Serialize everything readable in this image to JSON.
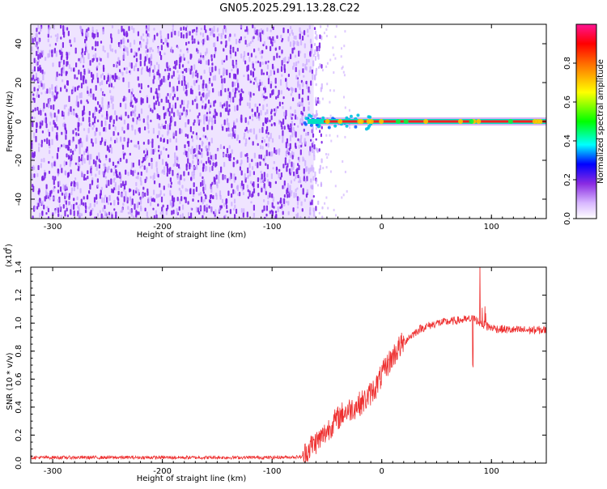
{
  "title": "GN05.2025.291.13.28.C22",
  "chart_data": [
    {
      "type": "heatmap",
      "xlabel": "Height of straight line (km)",
      "ylabel": "Frequency (Hz)",
      "xlim": [
        -320,
        150
      ],
      "ylim": [
        -50,
        50
      ],
      "xticks": [
        -300,
        -200,
        -100,
        0,
        100
      ],
      "yticks": [
        -40,
        -20,
        0,
        20,
        40
      ],
      "noise_region_x": [
        -320,
        -62
      ],
      "signal_line": {
        "freq_hz": 0,
        "x_start": -75,
        "x_end": 150,
        "start_offset_hz": 3,
        "width_hz": 2
      },
      "colorbar": {
        "label": "Normalized spectral amplitude",
        "range": [
          0,
          1
        ],
        "ticks": [
          "0.0",
          "0.2",
          "0.4",
          "0.6",
          "0.8"
        ],
        "tick_values": [
          0.0,
          0.2,
          0.4,
          0.6,
          0.8
        ],
        "stops": [
          {
            "v": 0.0,
            "color": "#ffffff"
          },
          {
            "v": 0.08,
            "color": "#d8b8ff"
          },
          {
            "v": 0.18,
            "color": "#8a2be2"
          },
          {
            "v": 0.28,
            "color": "#0000ff"
          },
          {
            "v": 0.38,
            "color": "#00ffff"
          },
          {
            "v": 0.5,
            "color": "#00ff00"
          },
          {
            "v": 0.65,
            "color": "#ffff00"
          },
          {
            "v": 0.8,
            "color": "#ff6a00"
          },
          {
            "v": 0.9,
            "color": "#ff0000"
          },
          {
            "v": 1.0,
            "color": "#ff1493"
          }
        ]
      },
      "colors": {
        "noise": "#7a1fe6",
        "noise_light": "#c9a6ff",
        "line_core": "#ff2020",
        "line_edge": "#00e0c0"
      }
    },
    {
      "type": "line",
      "xlabel": "Height of straight line (km)",
      "ylabel": "SNR (10 * v/v)",
      "scale_label": "(x10",
      "scale_exp": "4",
      "scale_close": ")",
      "xlim": [
        -320,
        150
      ],
      "ylim": [
        0,
        1.4
      ],
      "xticks": [
        -300,
        -200,
        -100,
        0,
        100
      ],
      "yticks": [
        "0.0",
        "0.2",
        "0.4",
        "0.6",
        "0.8",
        "1.0",
        "1.2",
        "1.4"
      ],
      "ytick_values": [
        0.0,
        0.2,
        0.4,
        0.6,
        0.8,
        1.0,
        1.2,
        1.4
      ],
      "series": [
        {
          "name": "SNR",
          "color": "#ee3030",
          "trend_x": [
            -320,
            -100,
            -72,
            -65,
            -55,
            -45,
            -35,
            -25,
            -15,
            -5,
            5,
            15,
            25,
            35,
            50,
            70,
            85,
            90,
            95,
            105,
            120,
            150
          ],
          "trend_y": [
            0.04,
            0.04,
            0.045,
            0.12,
            0.18,
            0.28,
            0.36,
            0.4,
            0.45,
            0.55,
            0.7,
            0.82,
            0.9,
            0.96,
            1.0,
            1.02,
            1.03,
            1.0,
            0.98,
            0.96,
            0.95,
            0.95
          ],
          "spike_region": [
            82,
            100
          ]
        }
      ]
    }
  ]
}
